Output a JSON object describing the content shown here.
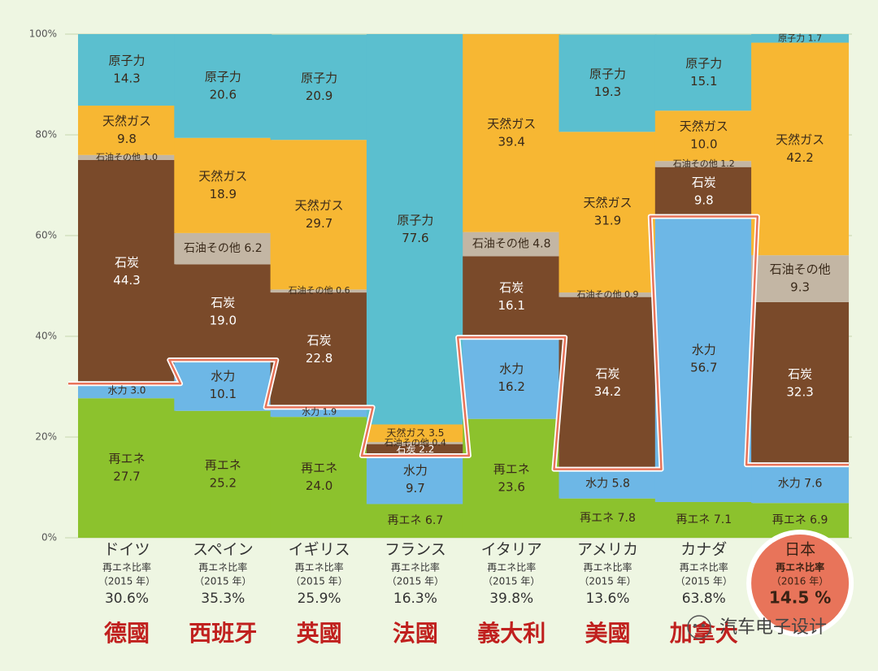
{
  "chart_data": {
    "type": "bar",
    "stacked": true,
    "categories": [
      "ドイツ",
      "スペイン",
      "イギリス",
      "フランス",
      "イタリア",
      "アメリカ",
      "カナダ",
      "日本"
    ],
    "categories_zh": [
      "德國",
      "西班牙",
      "英國",
      "法國",
      "義大利",
      "美國",
      "加拿大",
      ""
    ],
    "renewable_ratio_label": "再エネ比率",
    "years": [
      "（2015 年）",
      "（2015 年）",
      "（2015 年）",
      "（2015 年）",
      "（2015 年）",
      "（2015 年）",
      "（2015 年）",
      "（2016 年）"
    ],
    "renewable_ratio": [
      "30.6%",
      "35.3%",
      "25.9%",
      "16.3%",
      "39.8%",
      "13.6%",
      "63.8%",
      "14.5 %"
    ],
    "renewable_ratio_values": [
      30.6,
      35.3,
      25.9,
      16.3,
      39.8,
      13.6,
      63.8,
      14.5
    ],
    "series": [
      {
        "name": "再エネ",
        "color": "#8cc22d",
        "values": [
          27.7,
          25.2,
          24.0,
          6.7,
          23.6,
          7.8,
          7.1,
          6.9
        ]
      },
      {
        "name": "水力",
        "color": "#6db7e6",
        "values": [
          3.0,
          10.1,
          1.9,
          9.7,
          16.2,
          5.8,
          56.7,
          7.6
        ]
      },
      {
        "name": "石炭",
        "color": "#7a4a2a",
        "values": [
          44.3,
          19.0,
          22.8,
          2.2,
          16.1,
          34.2,
          9.8,
          32.3
        ]
      },
      {
        "name": "石油その他",
        "color": "#c3b6a4",
        "values": [
          1.0,
          6.2,
          0.6,
          0.4,
          4.8,
          0.9,
          1.2,
          9.3
        ]
      },
      {
        "name": "天然ガス",
        "color": "#f7b733",
        "values": [
          9.8,
          18.9,
          29.7,
          3.5,
          39.4,
          31.9,
          10.0,
          42.2
        ]
      },
      {
        "name": "原子力",
        "color": "#5bbfcf",
        "values": [
          14.3,
          20.6,
          20.9,
          77.6,
          0,
          19.3,
          15.1,
          1.7
        ]
      }
    ],
    "yticks": [
      "0%",
      "20%",
      "40%",
      "60%",
      "80%",
      "100%"
    ],
    "ylim": [
      0,
      100
    ],
    "grid": true,
    "highlight_color": "#e8745a"
  },
  "watermark": "汽车电子设计"
}
